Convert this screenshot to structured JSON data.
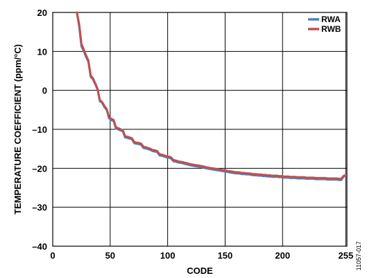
{
  "figure_id": "11057-017",
  "chart_data": {
    "type": "line",
    "xlabel": "CODE",
    "ylabel": "TEMPERATURE COEFFICIENT (ppm/°C)",
    "xlim": [
      0,
      256
    ],
    "ylim": [
      -40,
      20
    ],
    "x_ticks": [
      0,
      50,
      100,
      150,
      200,
      255
    ],
    "y_ticks": [
      20,
      10,
      0,
      -10,
      -20,
      -30,
      -40
    ],
    "grid": true,
    "legend_position": "top-right",
    "series": [
      {
        "name": "RWA",
        "color": "#4f7fbf",
        "x": [
          21,
          23,
          25,
          27,
          29,
          31,
          33,
          35,
          37,
          39,
          41,
          43,
          45,
          47,
          49,
          51,
          53,
          55,
          57,
          59,
          61,
          63,
          65,
          67,
          69,
          71,
          73,
          75,
          77,
          79,
          81,
          83,
          85,
          87,
          89,
          91,
          93,
          95,
          97,
          99,
          101,
          103,
          105,
          107,
          109,
          111,
          113,
          115,
          117,
          119,
          121,
          123,
          125,
          127,
          129,
          131,
          133,
          135,
          137,
          139,
          141,
          143,
          145,
          147,
          149,
          151,
          153,
          155,
          157,
          159,
          161,
          163,
          165,
          167,
          169,
          171,
          173,
          175,
          177,
          179,
          181,
          183,
          185,
          187,
          189,
          191,
          193,
          195,
          197,
          199,
          201,
          203,
          205,
          207,
          209,
          211,
          213,
          215,
          217,
          219,
          221,
          223,
          225,
          227,
          229,
          231,
          233,
          235,
          237,
          239,
          241,
          243,
          245,
          247,
          249,
          251,
          253,
          255
        ],
        "y": [
          20.0,
          16.4,
          11.3,
          10.1,
          8.6,
          7.4,
          3.5,
          2.8,
          1.6,
          0.2,
          -2.8,
          -3.2,
          -4.3,
          -5.0,
          -7.2,
          -7.6,
          -7.9,
          -9.8,
          -10.0,
          -10.3,
          -10.5,
          -12.1,
          -12.2,
          -12.4,
          -12.6,
          -13.6,
          -13.7,
          -13.8,
          -14.0,
          -14.8,
          -14.9,
          -15.1,
          -15.3,
          -15.6,
          -15.7,
          -15.9,
          -16.7,
          -16.8,
          -17.0,
          -17.2,
          -17.3,
          -17.5,
          -18.2,
          -18.3,
          -18.5,
          -18.6,
          -18.7,
          -18.9,
          -19.0,
          -19.2,
          -19.3,
          -19.4,
          -19.5,
          -19.6,
          -19.7,
          -19.8,
          -20.0,
          -20.1,
          -20.2,
          -20.3,
          -20.4,
          -20.5,
          -20.6,
          -20.7,
          -20.8,
          -20.9,
          -21.0,
          -21.1,
          -21.2,
          -21.3,
          -21.3,
          -21.4,
          -21.5,
          -21.5,
          -21.6,
          -21.6,
          -21.7,
          -21.8,
          -21.8,
          -21.9,
          -21.9,
          -22.0,
          -22.0,
          -22.1,
          -22.1,
          -22.2,
          -22.2,
          -22.2,
          -22.3,
          -22.3,
          -22.4,
          -22.4,
          -22.4,
          -22.5,
          -22.5,
          -22.5,
          -22.6,
          -22.6,
          -22.6,
          -22.6,
          -22.7,
          -22.7,
          -22.7,
          -22.7,
          -22.8,
          -22.8,
          -22.8,
          -22.8,
          -22.8,
          -22.9,
          -22.9,
          -22.9,
          -22.9,
          -22.9,
          -23.0,
          -23.0,
          -22.2,
          -21.8
        ]
      },
      {
        "name": "RWB",
        "color": "#c0504d",
        "x": [
          21,
          23,
          25,
          27,
          29,
          31,
          33,
          35,
          37,
          39,
          41,
          43,
          45,
          47,
          49,
          51,
          53,
          55,
          57,
          59,
          61,
          63,
          65,
          67,
          69,
          71,
          73,
          75,
          77,
          79,
          81,
          83,
          85,
          87,
          89,
          91,
          93,
          95,
          97,
          99,
          101,
          103,
          105,
          107,
          109,
          111,
          113,
          115,
          117,
          119,
          121,
          123,
          125,
          127,
          129,
          131,
          133,
          135,
          137,
          139,
          141,
          143,
          145,
          147,
          149,
          151,
          153,
          155,
          157,
          159,
          161,
          163,
          165,
          167,
          169,
          171,
          173,
          175,
          177,
          179,
          181,
          183,
          185,
          187,
          189,
          191,
          193,
          195,
          197,
          199,
          201,
          203,
          205,
          207,
          209,
          211,
          213,
          215,
          217,
          219,
          221,
          223,
          225,
          227,
          229,
          231,
          233,
          235,
          237,
          239,
          241,
          243,
          245,
          247,
          249,
          251,
          253,
          255
        ],
        "y": [
          20.0,
          17.0,
          11.9,
          10.5,
          9.0,
          7.7,
          3.8,
          3.1,
          1.8,
          0.4,
          -2.5,
          -3.0,
          -4.0,
          -4.8,
          -6.9,
          -7.3,
          -7.6,
          -9.5,
          -9.7,
          -10.0,
          -10.2,
          -11.8,
          -11.9,
          -12.1,
          -12.3,
          -13.3,
          -13.4,
          -13.5,
          -13.7,
          -14.5,
          -14.6,
          -14.8,
          -15.0,
          -15.3,
          -15.4,
          -15.6,
          -16.4,
          -16.5,
          -16.7,
          -16.9,
          -17.0,
          -17.2,
          -17.9,
          -18.0,
          -18.2,
          -18.3,
          -18.4,
          -18.6,
          -18.7,
          -18.9,
          -19.0,
          -19.1,
          -19.2,
          -19.3,
          -19.4,
          -19.5,
          -19.7,
          -19.8,
          -19.9,
          -20.0,
          -20.1,
          -20.2,
          -20.3,
          -20.4,
          -20.5,
          -20.6,
          -20.7,
          -20.8,
          -20.9,
          -21.0,
          -21.0,
          -21.1,
          -21.2,
          -21.2,
          -21.3,
          -21.3,
          -21.4,
          -21.5,
          -21.5,
          -21.6,
          -21.6,
          -21.7,
          -21.7,
          -21.8,
          -21.8,
          -21.9,
          -21.9,
          -21.9,
          -22.0,
          -22.0,
          -22.1,
          -22.1,
          -22.1,
          -22.2,
          -22.2,
          -22.2,
          -22.3,
          -22.3,
          -22.3,
          -22.3,
          -22.4,
          -22.4,
          -22.4,
          -22.4,
          -22.5,
          -22.5,
          -22.5,
          -22.5,
          -22.5,
          -22.6,
          -22.6,
          -22.6,
          -22.6,
          -22.6,
          -22.7,
          -22.7,
          -22.0,
          -21.7
        ]
      }
    ]
  }
}
